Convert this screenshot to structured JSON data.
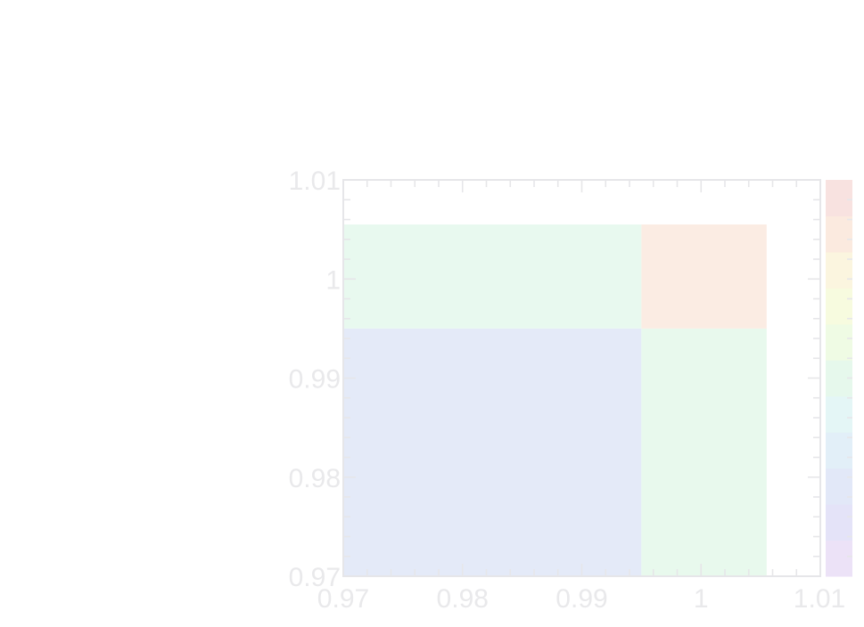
{
  "chart_data": {
    "type": "heatmap",
    "title": "",
    "xlabel": "",
    "ylabel": "",
    "xlim": [
      0.97,
      1.01
    ],
    "ylim": [
      0.97,
      1.01
    ],
    "x_ticks": [
      0.97,
      0.98,
      0.99,
      1.0,
      1.01
    ],
    "x_tick_labels": [
      "0.97",
      "0.98",
      "0.99",
      "1",
      "1.01"
    ],
    "y_ticks": [
      0.97,
      0.98,
      0.99,
      1.0,
      1.01
    ],
    "y_tick_labels": [
      "0.97",
      "0.98",
      "0.99",
      "1",
      "1.01"
    ],
    "grid": false,
    "colorbar": true,
    "colormap": [
      "#ece2f7",
      "#e4e3f8",
      "#e2e8f8",
      "#e2eff8",
      "#e4f6f6",
      "#e6f8ec",
      "#effbe4",
      "#f7fbdf",
      "#fbf5df",
      "#fbeadf",
      "#f8e2e0"
    ],
    "regions": [
      {
        "name": "lower-left",
        "x": [
          0.97,
          0.995
        ],
        "y": [
          0.97,
          0.995
        ],
        "level": 0.12,
        "color": "#e4eaf8"
      },
      {
        "name": "upper-left",
        "x": [
          0.97,
          0.995
        ],
        "y": [
          0.995,
          1.0055
        ],
        "level": 0.5,
        "color": "#e8f9ef"
      },
      {
        "name": "lower-right",
        "x": [
          0.995,
          1.0055
        ],
        "y": [
          0.97,
          0.995
        ],
        "level": 0.5,
        "color": "#e8f9ed"
      },
      {
        "name": "upper-right",
        "x": [
          0.995,
          1.0055
        ],
        "y": [
          0.995,
          1.0055
        ],
        "level": 0.9,
        "color": "#fbece3"
      }
    ]
  }
}
